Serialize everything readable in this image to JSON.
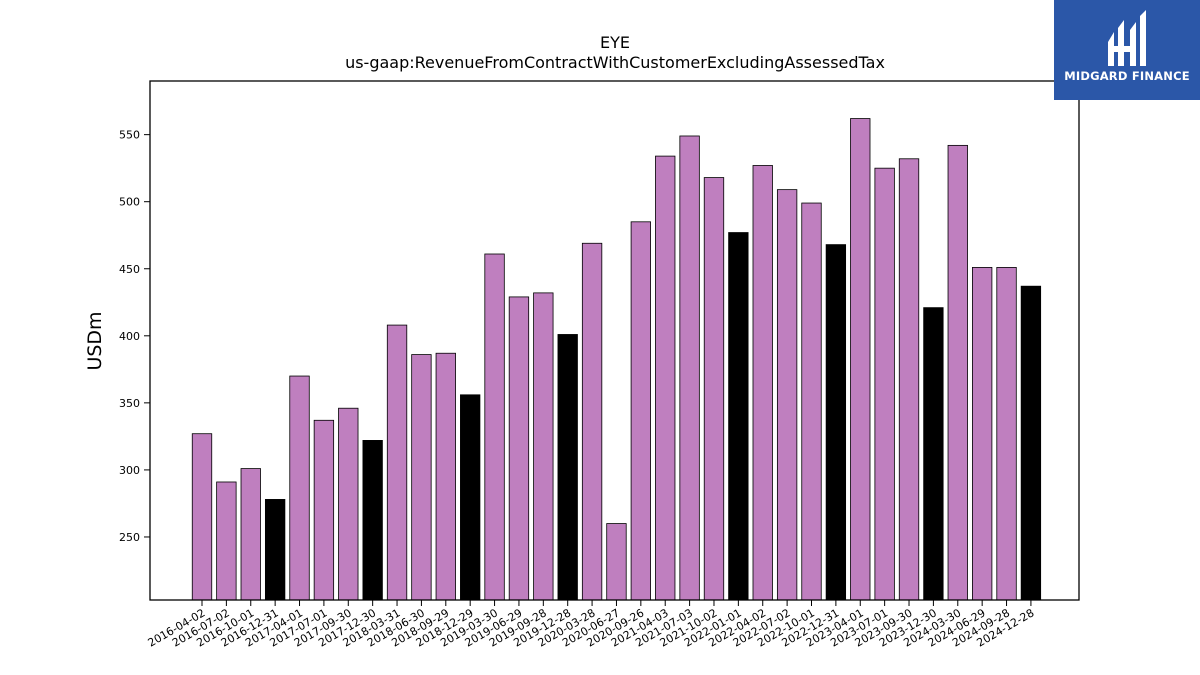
{
  "chart_data": {
    "type": "bar",
    "title": "EYE",
    "subtitle": "us-gaap:RevenueFromContractWithCustomerExcludingAssessedTax",
    "xlabel": "",
    "ylabel": "USDm",
    "ylim": [
      203,
      590
    ],
    "yticks": [
      250,
      300,
      350,
      400,
      450,
      500,
      550
    ],
    "grid": false,
    "colors": {
      "quarter": "#bf7fbf",
      "fiscal_year_end": "#000000",
      "edge": "#000000"
    },
    "categories": [
      "2016-04-02",
      "2016-07-02",
      "2016-10-01",
      "2016-12-31",
      "2017-04-01",
      "2017-07-01",
      "2017-09-30",
      "2017-12-30",
      "2018-03-31",
      "2018-06-30",
      "2018-09-29",
      "2018-12-29",
      "2019-03-30",
      "2019-06-29",
      "2019-09-28",
      "2019-12-28",
      "2020-03-28",
      "2020-06-27",
      "2020-09-26",
      "2021-04-03",
      "2021-07-03",
      "2021-10-02",
      "2022-01-01",
      "2022-04-02",
      "2022-07-02",
      "2022-10-01",
      "2022-12-31",
      "2023-04-01",
      "2023-07-01",
      "2023-09-30",
      "2023-12-30",
      "2024-03-30",
      "2024-06-29",
      "2024-09-28",
      "2024-12-28"
    ],
    "values": [
      327,
      291,
      301,
      278,
      370,
      337,
      346,
      322,
      408,
      386,
      387,
      356,
      461,
      429,
      432,
      401,
      469,
      260,
      485,
      534,
      549,
      518,
      477,
      527,
      509,
      499,
      468,
      562,
      525,
      532,
      421,
      542,
      451,
      451,
      437
    ],
    "fiscal_year_end": [
      false,
      false,
      false,
      true,
      false,
      false,
      false,
      true,
      false,
      false,
      false,
      true,
      false,
      false,
      false,
      true,
      false,
      false,
      false,
      false,
      false,
      false,
      true,
      false,
      false,
      false,
      true,
      false,
      false,
      false,
      true,
      false,
      false,
      false,
      true
    ]
  },
  "logo": {
    "text": "MIDGARD FINANCE"
  }
}
